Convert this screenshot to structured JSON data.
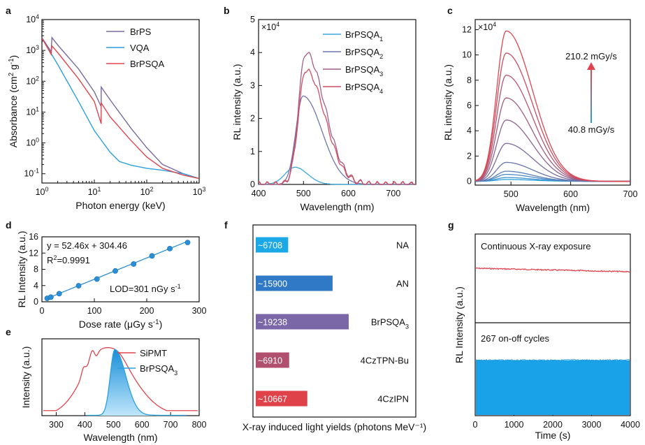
{
  "colors": {
    "cyan": "#2aa0dc",
    "purple": "#7a6aa0",
    "red": "#e0454f",
    "blue_dot": "#2a8fd6",
    "bar_ad": "#1aa8e6",
    "bar_an": "#2f79c6",
    "bar_bp": "#7a67a8",
    "bar_cz": "#b0506e",
    "bar_ipn": "#e0424a"
  },
  "chart_data": [
    {
      "id": "a",
      "panel_label": "a",
      "type": "line",
      "xlabel": "Photon energy (keV)",
      "ylabel_prefix": "Absorbance (cm",
      "ylabel_sup1": "2",
      "ylabel_mid": " g",
      "ylabel_sup2": "-1",
      "ylabel_suffix": ")",
      "xscale": "log",
      "yscale": "log",
      "xlim": [
        1,
        1000
      ],
      "ylim": [
        0.05,
        10000
      ],
      "xticks": [
        {
          "base": "10",
          "exp": "0"
        },
        {
          "base": "10",
          "exp": "1"
        },
        {
          "base": "10",
          "exp": "2"
        },
        {
          "base": "10",
          "exp": "3"
        }
      ],
      "yticks": [
        {
          "base": "10",
          "exp": "-1"
        },
        {
          "base": "10",
          "exp": "0"
        },
        {
          "base": "10",
          "exp": "1"
        },
        {
          "base": "10",
          "exp": "2"
        },
        {
          "base": "10",
          "exp": "3"
        },
        {
          "base": "10",
          "exp": "4"
        }
      ],
      "legend_position": "top-right",
      "series": [
        {
          "name": "BrPS",
          "color": "purple",
          "x": [
            1,
            1.5,
            1.55,
            2,
            5,
            10,
            13.5,
            13.5,
            20,
            50,
            100,
            200,
            500,
            1000
          ],
          "y": [
            2600,
            900,
            2600,
            1500,
            250,
            45,
            15,
            65,
            25,
            3,
            0.7,
            0.2,
            0.1,
            0.07
          ]
        },
        {
          "name": "VQA",
          "color": "cyan",
          "x": [
            1,
            2,
            5,
            10,
            20,
            30,
            50,
            100,
            200,
            500,
            1000
          ],
          "y": [
            2500,
            350,
            22,
            2.5,
            0.5,
            0.25,
            0.19,
            0.15,
            0.13,
            0.1,
            0.07
          ]
        },
        {
          "name": "BrPSQA",
          "color": "red",
          "x": [
            1,
            1.5,
            1.55,
            2,
            5,
            10,
            13.5,
            13.5,
            20,
            50,
            100,
            200,
            500,
            1000
          ],
          "y": [
            2500,
            750,
            1400,
            850,
            120,
            22,
            4.2,
            20,
            7,
            1.2,
            0.35,
            0.15,
            0.09,
            0.07
          ]
        }
      ]
    },
    {
      "id": "b",
      "panel_label": "b",
      "type": "line",
      "xlabel": "Wavelength (nm)",
      "ylabel": "RL intensity (a.u.)",
      "multiplier_base": "×10",
      "multiplier_exp": "4",
      "xlim": [
        400,
        750
      ],
      "ylim": [
        0,
        5
      ],
      "xticks": [
        400,
        500,
        600,
        700
      ],
      "yticks": [
        0,
        1,
        2,
        3,
        4,
        5
      ],
      "legend_position": "top-right",
      "series": [
        {
          "name": "BrPSQA",
          "sub": "1",
          "color": "#3ea6dc",
          "peak": 0.52,
          "center": 481
        },
        {
          "name": "BrPSQA",
          "sub": "2",
          "color": "#6e76ad",
          "peak": 2.68,
          "center": 499
        },
        {
          "name": "BrPSQA",
          "sub": "3",
          "color": "#a45e86",
          "peak": 3.99,
          "center": 505
        },
        {
          "name": "BrPSQA",
          "sub": "4",
          "color": "#d24d62",
          "peak": 3.47,
          "center": 505
        }
      ]
    },
    {
      "id": "c",
      "panel_label": "c",
      "type": "line",
      "xlabel": "Wavelength (nm)",
      "ylabel": "RL intensity (a.u.)",
      "multiplier_base": "×10",
      "multiplier_exp": "4",
      "xlim": [
        440,
        700
      ],
      "ylim": [
        -0.3,
        12.8
      ],
      "xticks": [
        500,
        600,
        700
      ],
      "yticks": [
        0,
        2,
        4,
        6,
        8,
        10,
        12
      ],
      "annotation_top": "210.2 mGy/s",
      "annotation_bottom": "40.8 mGy/s",
      "peaks": [
        0.15,
        0.3,
        0.55,
        0.8,
        1.5,
        3.0,
        4.85,
        6.6,
        8.4,
        10.15,
        11.9
      ]
    },
    {
      "id": "d",
      "panel_label": "d",
      "type": "scatter",
      "xlabel_prefix": "Dose rate (",
      "xlabel_mu": "μ",
      "xlabel_suffix": "Gy s",
      "xlabel_sup": "-1",
      "xlabel_end": ")",
      "ylabel": "RL Intensity (a.u.)",
      "xlim": [
        0,
        300
      ],
      "ylim": [
        0,
        16
      ],
      "xticks": [
        0,
        100,
        200,
        300
      ],
      "yticks": [
        0,
        4,
        8,
        12,
        16
      ],
      "equation": "y = 52.46x + 304.46",
      "r2_prefix": "R",
      "r2_sup": "2",
      "r2_value": "=0.9991",
      "lod_text": "LOD=301 nGy s",
      "lod_sup": "-1",
      "x": [
        10,
        17,
        33,
        70,
        105,
        140,
        175,
        210,
        244,
        278
      ],
      "y": [
        0.85,
        1.15,
        2.0,
        3.95,
        5.6,
        7.6,
        9.3,
        11.3,
        13.1,
        14.6
      ]
    },
    {
      "id": "e",
      "panel_label": "e",
      "type": "line",
      "xlabel": "Wavelength (nm)",
      "ylabel": "Intensity (a.u.)",
      "xlim": [
        250,
        800
      ],
      "xticks": [
        300,
        400,
        500,
        600,
        700,
        800
      ],
      "legend_position": "top-right",
      "series": [
        {
          "name": "SiPMT",
          "color": "red"
        },
        {
          "name": "BrPSQA",
          "sub": "3",
          "color": "cyan"
        }
      ]
    },
    {
      "id": "f",
      "panel_label": "f",
      "type": "bar",
      "xlabel": "X-ray induced light yields (photons MeV⁻¹)",
      "categories": [
        {
          "label": "NA",
          "value_label": "~6708",
          "value": 6708,
          "color": "bar_ad"
        },
        {
          "label": "AN",
          "value_label": "~15900",
          "value": 15900,
          "color": "bar_an"
        },
        {
          "label": "BrPSQA",
          "sub": "3",
          "value_label": "~19238",
          "value": 19238,
          "color": "bar_bp"
        },
        {
          "label": "4CzTPN-Bu",
          "value_label": "~6910",
          "value": 6910,
          "color": "bar_cz"
        },
        {
          "label": "4CzIPN",
          "value_label": "~10667",
          "value": 10667,
          "color": "bar_ipn"
        }
      ]
    },
    {
      "id": "g",
      "panel_label": "g",
      "type": "line",
      "xlabel": "Time (s)",
      "ylabel": "RL Intensity (a.u.)",
      "xlim": [
        0,
        4000
      ],
      "xticks": [
        0,
        1000,
        2000,
        3000,
        4000
      ],
      "top_label": "Continuous X-ray exposure",
      "bottom_label": "267 on-off cycles"
    }
  ]
}
